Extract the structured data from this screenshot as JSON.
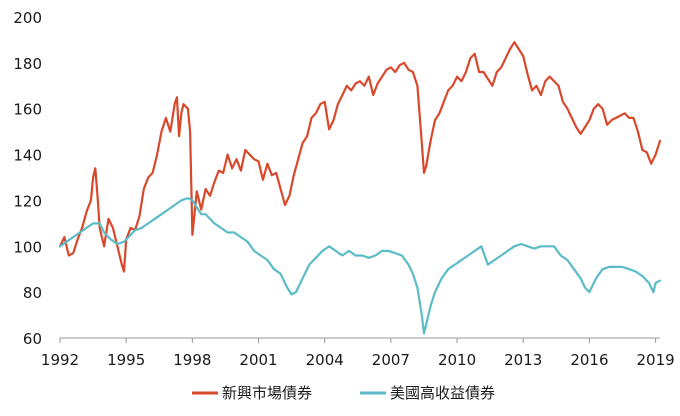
{
  "colors": {
    "series_1": "#d9482b",
    "series_2": "#5bbcc8",
    "axis": "#999999",
    "text": "#1a1a1a"
  },
  "chart_data": {
    "type": "line",
    "title": "",
    "xlabel": "",
    "ylabel": "",
    "xlim": [
      1992,
      2019.2
    ],
    "ylim": [
      60,
      200
    ],
    "x_ticks": [
      "1992",
      "1995",
      "1998",
      "2001",
      "2004",
      "2007",
      "2010",
      "2013",
      "2016",
      "2019"
    ],
    "x_tick_values": [
      1992,
      1995,
      1998,
      2001,
      2004,
      2007,
      2010,
      2013,
      2016,
      2019
    ],
    "y_ticks": [
      "60",
      "80",
      "100",
      "120",
      "140",
      "160",
      "180",
      "200"
    ],
    "y_tick_values": [
      60,
      80,
      100,
      120,
      140,
      160,
      180,
      200
    ],
    "grid": false,
    "legend_position": "bottom",
    "series": [
      {
        "name": "新興市場債券",
        "color": "#d9482b",
        "points": [
          [
            1992.0,
            100
          ],
          [
            1992.2,
            104
          ],
          [
            1992.4,
            96
          ],
          [
            1992.6,
            97
          ],
          [
            1992.8,
            103
          ],
          [
            1993.0,
            108
          ],
          [
            1993.2,
            115
          ],
          [
            1993.4,
            120
          ],
          [
            1993.5,
            130
          ],
          [
            1993.6,
            134
          ],
          [
            1993.7,
            122
          ],
          [
            1993.8,
            108
          ],
          [
            1994.0,
            100
          ],
          [
            1994.2,
            112
          ],
          [
            1994.4,
            108
          ],
          [
            1994.6,
            100
          ],
          [
            1994.8,
            92
          ],
          [
            1994.9,
            89
          ],
          [
            1995.0,
            103
          ],
          [
            1995.2,
            108
          ],
          [
            1995.4,
            107
          ],
          [
            1995.6,
            113
          ],
          [
            1995.8,
            125
          ],
          [
            1996.0,
            130
          ],
          [
            1996.2,
            132
          ],
          [
            1996.4,
            140
          ],
          [
            1996.6,
            150
          ],
          [
            1996.8,
            156
          ],
          [
            1997.0,
            150
          ],
          [
            1997.2,
            162
          ],
          [
            1997.3,
            165
          ],
          [
            1997.4,
            148
          ],
          [
            1997.5,
            158
          ],
          [
            1997.6,
            162
          ],
          [
            1997.8,
            160
          ],
          [
            1997.9,
            150
          ],
          [
            1998.0,
            105
          ],
          [
            1998.2,
            124
          ],
          [
            1998.4,
            116
          ],
          [
            1998.6,
            125
          ],
          [
            1998.8,
            122
          ],
          [
            1999.0,
            128
          ],
          [
            1999.2,
            133
          ],
          [
            1999.4,
            132
          ],
          [
            1999.6,
            140
          ],
          [
            1999.8,
            134
          ],
          [
            2000.0,
            138
          ],
          [
            2000.2,
            133
          ],
          [
            2000.4,
            142
          ],
          [
            2000.6,
            140
          ],
          [
            2000.8,
            138
          ],
          [
            2001.0,
            137
          ],
          [
            2001.2,
            129
          ],
          [
            2001.4,
            136
          ],
          [
            2001.6,
            131
          ],
          [
            2001.8,
            132
          ],
          [
            2002.0,
            125
          ],
          [
            2002.2,
            118
          ],
          [
            2002.4,
            122
          ],
          [
            2002.6,
            131
          ],
          [
            2002.8,
            138
          ],
          [
            2003.0,
            145
          ],
          [
            2003.2,
            148
          ],
          [
            2003.4,
            156
          ],
          [
            2003.6,
            158
          ],
          [
            2003.8,
            162
          ],
          [
            2004.0,
            163
          ],
          [
            2004.2,
            151
          ],
          [
            2004.4,
            155
          ],
          [
            2004.6,
            162
          ],
          [
            2004.8,
            166
          ],
          [
            2005.0,
            170
          ],
          [
            2005.2,
            168
          ],
          [
            2005.4,
            171
          ],
          [
            2005.6,
            172
          ],
          [
            2005.8,
            170
          ],
          [
            2006.0,
            174
          ],
          [
            2006.2,
            166
          ],
          [
            2006.4,
            171
          ],
          [
            2006.6,
            174
          ],
          [
            2006.8,
            177
          ],
          [
            2007.0,
            178
          ],
          [
            2007.2,
            176
          ],
          [
            2007.4,
            179
          ],
          [
            2007.6,
            180
          ],
          [
            2007.8,
            177
          ],
          [
            2008.0,
            176
          ],
          [
            2008.2,
            170
          ],
          [
            2008.4,
            145
          ],
          [
            2008.5,
            132
          ],
          [
            2008.6,
            135
          ],
          [
            2008.8,
            146
          ],
          [
            2009.0,
            155
          ],
          [
            2009.2,
            158
          ],
          [
            2009.4,
            163
          ],
          [
            2009.6,
            168
          ],
          [
            2009.8,
            170
          ],
          [
            2010.0,
            174
          ],
          [
            2010.2,
            172
          ],
          [
            2010.4,
            176
          ],
          [
            2010.6,
            182
          ],
          [
            2010.8,
            184
          ],
          [
            2011.0,
            176
          ],
          [
            2011.2,
            176
          ],
          [
            2011.4,
            173
          ],
          [
            2011.6,
            170
          ],
          [
            2011.8,
            176
          ],
          [
            2012.0,
            178
          ],
          [
            2012.2,
            182
          ],
          [
            2012.4,
            186
          ],
          [
            2012.6,
            189
          ],
          [
            2012.8,
            186
          ],
          [
            2013.0,
            183
          ],
          [
            2013.2,
            175
          ],
          [
            2013.4,
            168
          ],
          [
            2013.6,
            170
          ],
          [
            2013.8,
            166
          ],
          [
            2014.0,
            172
          ],
          [
            2014.2,
            174
          ],
          [
            2014.4,
            172
          ],
          [
            2014.6,
            170
          ],
          [
            2014.8,
            163
          ],
          [
            2015.0,
            160
          ],
          [
            2015.2,
            156
          ],
          [
            2015.4,
            152
          ],
          [
            2015.6,
            149
          ],
          [
            2015.8,
            152
          ],
          [
            2016.0,
            155
          ],
          [
            2016.2,
            160
          ],
          [
            2016.4,
            162
          ],
          [
            2016.6,
            160
          ],
          [
            2016.8,
            153
          ],
          [
            2017.0,
            155
          ],
          [
            2017.2,
            156
          ],
          [
            2017.4,
            157
          ],
          [
            2017.6,
            158
          ],
          [
            2017.8,
            156
          ],
          [
            2018.0,
            156
          ],
          [
            2018.2,
            150
          ],
          [
            2018.4,
            142
          ],
          [
            2018.6,
            141
          ],
          [
            2018.8,
            136
          ],
          [
            2019.0,
            140
          ],
          [
            2019.2,
            146
          ]
        ]
      },
      {
        "name": "美國高收益債券",
        "color": "#5bbcc8",
        "points": [
          [
            1992.0,
            100
          ],
          [
            1992.3,
            102
          ],
          [
            1992.6,
            104
          ],
          [
            1992.9,
            106
          ],
          [
            1993.2,
            108
          ],
          [
            1993.5,
            110
          ],
          [
            1993.8,
            110
          ],
          [
            1994.0,
            106
          ],
          [
            1994.3,
            103
          ],
          [
            1994.6,
            101
          ],
          [
            1994.9,
            102
          ],
          [
            1995.1,
            104
          ],
          [
            1995.4,
            107
          ],
          [
            1995.7,
            108
          ],
          [
            1996.0,
            110
          ],
          [
            1996.3,
            112
          ],
          [
            1996.6,
            114
          ],
          [
            1996.9,
            116
          ],
          [
            1997.2,
            118
          ],
          [
            1997.5,
            120
          ],
          [
            1997.8,
            121
          ],
          [
            1998.0,
            120
          ],
          [
            1998.2,
            117
          ],
          [
            1998.4,
            114
          ],
          [
            1998.6,
            114
          ],
          [
            1998.8,
            112
          ],
          [
            1999.0,
            110
          ],
          [
            1999.3,
            108
          ],
          [
            1999.6,
            106
          ],
          [
            1999.9,
            106
          ],
          [
            2000.2,
            104
          ],
          [
            2000.5,
            102
          ],
          [
            2000.8,
            98
          ],
          [
            2001.1,
            96
          ],
          [
            2001.4,
            94
          ],
          [
            2001.7,
            90
          ],
          [
            2002.0,
            88
          ],
          [
            2002.3,
            82
          ],
          [
            2002.5,
            79
          ],
          [
            2002.7,
            80
          ],
          [
            2003.0,
            86
          ],
          [
            2003.3,
            92
          ],
          [
            2003.6,
            95
          ],
          [
            2003.9,
            98
          ],
          [
            2004.2,
            100
          ],
          [
            2004.5,
            98
          ],
          [
            2004.8,
            96
          ],
          [
            2005.1,
            98
          ],
          [
            2005.4,
            96
          ],
          [
            2005.7,
            96
          ],
          [
            2006.0,
            95
          ],
          [
            2006.3,
            96
          ],
          [
            2006.6,
            98
          ],
          [
            2006.9,
            98
          ],
          [
            2007.2,
            97
          ],
          [
            2007.5,
            96
          ],
          [
            2007.8,
            92
          ],
          [
            2008.0,
            88
          ],
          [
            2008.2,
            82
          ],
          [
            2008.4,
            70
          ],
          [
            2008.5,
            62
          ],
          [
            2008.6,
            66
          ],
          [
            2008.8,
            74
          ],
          [
            2009.0,
            80
          ],
          [
            2009.3,
            86
          ],
          [
            2009.6,
            90
          ],
          [
            2009.9,
            92
          ],
          [
            2010.2,
            94
          ],
          [
            2010.5,
            96
          ],
          [
            2010.8,
            98
          ],
          [
            2011.1,
            100
          ],
          [
            2011.4,
            92
          ],
          [
            2011.7,
            94
          ],
          [
            2012.0,
            96
          ],
          [
            2012.3,
            98
          ],
          [
            2012.6,
            100
          ],
          [
            2012.9,
            101
          ],
          [
            2013.2,
            100
          ],
          [
            2013.5,
            99
          ],
          [
            2013.8,
            100
          ],
          [
            2014.1,
            100
          ],
          [
            2014.4,
            100
          ],
          [
            2014.7,
            96
          ],
          [
            2015.0,
            94
          ],
          [
            2015.3,
            90
          ],
          [
            2015.6,
            86
          ],
          [
            2015.8,
            82
          ],
          [
            2016.0,
            80
          ],
          [
            2016.3,
            86
          ],
          [
            2016.6,
            90
          ],
          [
            2016.9,
            91
          ],
          [
            2017.2,
            91
          ],
          [
            2017.5,
            91
          ],
          [
            2017.8,
            90
          ],
          [
            2018.1,
            89
          ],
          [
            2018.4,
            87
          ],
          [
            2018.7,
            84
          ],
          [
            2018.9,
            80
          ],
          [
            2019.0,
            84
          ],
          [
            2019.2,
            85
          ]
        ]
      }
    ]
  }
}
